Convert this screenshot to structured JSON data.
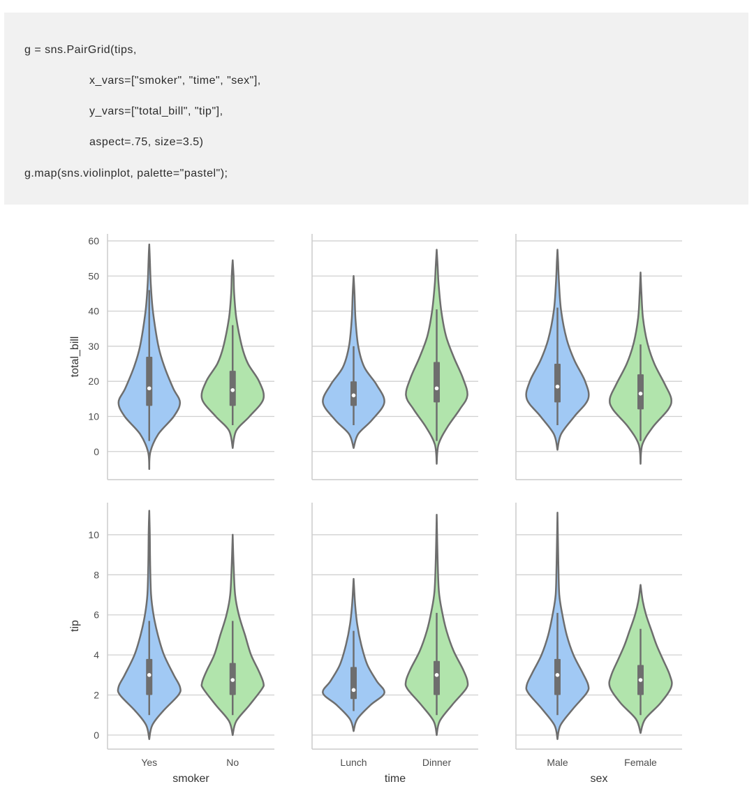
{
  "code": {
    "lines": [
      "g = sns.PairGrid(tips,",
      "x_vars=[\"smoker\", \"time\", \"sex\"],",
      "y_vars=[\"total_bill\", \"tip\"],",
      "aspect=.75, size=3.5)",
      "g.map(sns.violinplot, palette=\"pastel\");"
    ],
    "indent": [
      false,
      true,
      true,
      true,
      false
    ]
  },
  "colors": {
    "blue": "#a1c9f4",
    "green": "#b1e4ac",
    "outline": "#6e6e6e",
    "grid": "#d0d0d0",
    "spine": "#cccccc",
    "tick_text": "#4d4d4d"
  },
  "chart_data": {
    "type": "violin",
    "grid": true,
    "rows": [
      {
        "ylabel": "total_bill",
        "ylim": [
          -8,
          62
        ],
        "yticks": [
          "0",
          "10",
          "20",
          "30",
          "40",
          "50",
          "60"
        ],
        "ytick_values": [
          0,
          10,
          20,
          30,
          40,
          50,
          60
        ]
      },
      {
        "ylabel": "tip",
        "ylim": [
          -0.7,
          11.6
        ],
        "yticks": [
          "0",
          "2",
          "4",
          "6",
          "8",
          "10"
        ],
        "ytick_values": [
          0,
          2,
          4,
          6,
          8,
          10
        ]
      }
    ],
    "columns": [
      {
        "xlabel": "smoker",
        "categories": [
          "Yes",
          "No"
        ]
      },
      {
        "xlabel": "time",
        "categories": [
          "Lunch",
          "Dinner"
        ]
      },
      {
        "xlabel": "sex",
        "categories": [
          "Male",
          "Female"
        ]
      }
    ],
    "panels": [
      [
        [
          {
            "min": -5,
            "q1": 13,
            "median": 18,
            "q3": 27,
            "max": 59,
            "wlo": 3,
            "whi": 46,
            "bulge": 16,
            "prof": [
              [
                -5,
                0
              ],
              [
                0,
                0.04
              ],
              [
                5,
                0.3
              ],
              [
                10,
                0.8
              ],
              [
                14,
                1
              ],
              [
                18,
                0.78
              ],
              [
                24,
                0.5
              ],
              [
                30,
                0.3
              ],
              [
                40,
                0.12
              ],
              [
                48,
                0.05
              ],
              [
                55,
                0.02
              ],
              [
                59,
                0
              ]
            ]
          },
          {
            "min": 1,
            "q1": 13,
            "median": 17.5,
            "q3": 23,
            "max": 54.5,
            "wlo": 7.5,
            "whi": 36,
            "bulge": 16,
            "prof": [
              [
                1,
                0
              ],
              [
                6,
                0.12
              ],
              [
                10,
                0.55
              ],
              [
                15,
                1
              ],
              [
                20,
                0.86
              ],
              [
                25,
                0.5
              ],
              [
                30,
                0.3
              ],
              [
                38,
                0.12
              ],
              [
                45,
                0.05
              ],
              [
                50,
                0.03
              ],
              [
                54.5,
                0
              ]
            ]
          }
        ],
        [
          {
            "min": 1,
            "q1": 13,
            "median": 16,
            "q3": 20,
            "max": 50,
            "wlo": 7.5,
            "whi": 30,
            "bulge": 14,
            "prof": [
              [
                1,
                0
              ],
              [
                5,
                0.15
              ],
              [
                9,
                0.6
              ],
              [
                14,
                1
              ],
              [
                19,
                0.75
              ],
              [
                24,
                0.35
              ],
              [
                30,
                0.15
              ],
              [
                38,
                0.06
              ],
              [
                45,
                0.03
              ],
              [
                50,
                0
              ]
            ]
          },
          {
            "min": -3.5,
            "q1": 14,
            "median": 18,
            "q3": 25.5,
            "max": 57.5,
            "wlo": 3,
            "whi": 40.5,
            "bulge": 16,
            "prof": [
              [
                -3.5,
                0
              ],
              [
                2,
                0.06
              ],
              [
                7,
                0.35
              ],
              [
                12,
                0.75
              ],
              [
                16,
                1
              ],
              [
                21,
                0.85
              ],
              [
                27,
                0.55
              ],
              [
                33,
                0.3
              ],
              [
                40,
                0.15
              ],
              [
                48,
                0.06
              ],
              [
                53,
                0.03
              ],
              [
                57.5,
                0
              ]
            ]
          }
        ],
        [
          {
            "min": 0.5,
            "q1": 14,
            "median": 18.5,
            "q3": 25,
            "max": 57.5,
            "wlo": 7.5,
            "whi": 41,
            "bulge": 15.5,
            "prof": [
              [
                0.5,
                0
              ],
              [
                5,
                0.12
              ],
              [
                10,
                0.55
              ],
              [
                15,
                1
              ],
              [
                20,
                0.9
              ],
              [
                26,
                0.55
              ],
              [
                32,
                0.3
              ],
              [
                40,
                0.12
              ],
              [
                48,
                0.05
              ],
              [
                54,
                0.02
              ],
              [
                57.5,
                0
              ]
            ]
          },
          {
            "min": -3.5,
            "q1": 12,
            "median": 16.5,
            "q3": 22,
            "max": 51,
            "wlo": 3,
            "whi": 30.5,
            "bulge": 15,
            "prof": [
              [
                -3.5,
                0
              ],
              [
                2,
                0.06
              ],
              [
                7,
                0.4
              ],
              [
                12,
                0.9
              ],
              [
                15,
                1
              ],
              [
                19,
                0.8
              ],
              [
                25,
                0.45
              ],
              [
                31,
                0.22
              ],
              [
                38,
                0.08
              ],
              [
                45,
                0.03
              ],
              [
                51,
                0
              ]
            ]
          }
        ]
      ],
      [
        [
          {
            "min": -0.2,
            "q1": 2,
            "median": 3,
            "q3": 3.8,
            "max": 11.2,
            "wlo": 1,
            "whi": 5.7,
            "bulge": 2.3,
            "prof": [
              [
                -0.2,
                0
              ],
              [
                0.5,
                0.1
              ],
              [
                1.2,
                0.45
              ],
              [
                2,
                0.95
              ],
              [
                2.4,
                1
              ],
              [
                3,
                0.8
              ],
              [
                4,
                0.48
              ],
              [
                5,
                0.28
              ],
              [
                6,
                0.14
              ],
              [
                7,
                0.06
              ],
              [
                8.5,
                0.03
              ],
              [
                10,
                0.02
              ],
              [
                11.2,
                0
              ]
            ]
          },
          {
            "min": 0,
            "q1": 2,
            "median": 2.75,
            "q3": 3.6,
            "max": 10,
            "wlo": 1,
            "whi": 5.7,
            "bulge": 2.5,
            "prof": [
              [
                0,
                0
              ],
              [
                0.7,
                0.12
              ],
              [
                1.5,
                0.55
              ],
              [
                2.3,
                0.95
              ],
              [
                2.6,
                1
              ],
              [
                3.2,
                0.85
              ],
              [
                4,
                0.6
              ],
              [
                5,
                0.4
              ],
              [
                6,
                0.2
              ],
              [
                7,
                0.08
              ],
              [
                8.5,
                0.03
              ],
              [
                10,
                0
              ]
            ]
          }
        ],
        [
          {
            "min": 0.2,
            "q1": 1.8,
            "median": 2.25,
            "q3": 3.4,
            "max": 7.8,
            "wlo": 1.2,
            "whi": 5.2,
            "bulge": 2.1,
            "prof": [
              [
                0.2,
                0
              ],
              [
                0.8,
                0.12
              ],
              [
                1.5,
                0.55
              ],
              [
                2.1,
                1
              ],
              [
                2.7,
                0.75
              ],
              [
                3.5,
                0.45
              ],
              [
                4.5,
                0.25
              ],
              [
                5.5,
                0.12
              ],
              [
                6.5,
                0.05
              ],
              [
                7.8,
                0
              ]
            ]
          },
          {
            "min": 0,
            "q1": 2,
            "median": 3,
            "q3": 3.7,
            "max": 11,
            "wlo": 1,
            "whi": 6.1,
            "bulge": 2.3,
            "prof": [
              [
                0,
                0
              ],
              [
                0.7,
                0.1
              ],
              [
                1.5,
                0.5
              ],
              [
                2.3,
                0.95
              ],
              [
                2.7,
                1
              ],
              [
                3.3,
                0.85
              ],
              [
                4.2,
                0.55
              ],
              [
                5.2,
                0.32
              ],
              [
                6.2,
                0.17
              ],
              [
                7.2,
                0.07
              ],
              [
                8.8,
                0.03
              ],
              [
                11,
                0
              ]
            ]
          }
        ],
        [
          {
            "min": -0.2,
            "q1": 2,
            "median": 3,
            "q3": 3.8,
            "max": 11.1,
            "wlo": 1,
            "whi": 6.1,
            "bulge": 2.3,
            "prof": [
              [
                -0.2,
                0
              ],
              [
                0.5,
                0.1
              ],
              [
                1.3,
                0.5
              ],
              [
                2.1,
                0.95
              ],
              [
                2.5,
                1
              ],
              [
                3.1,
                0.82
              ],
              [
                4,
                0.52
              ],
              [
                5,
                0.3
              ],
              [
                6,
                0.16
              ],
              [
                7,
                0.06
              ],
              [
                8.5,
                0.03
              ],
              [
                11.1,
                0
              ]
            ]
          },
          {
            "min": 0.1,
            "q1": 2,
            "median": 2.75,
            "q3": 3.5,
            "max": 7.5,
            "wlo": 1,
            "whi": 5.3,
            "bulge": 2.6,
            "prof": [
              [
                0.1,
                0
              ],
              [
                0.8,
                0.15
              ],
              [
                1.6,
                0.65
              ],
              [
                2.4,
                1
              ],
              [
                3,
                0.95
              ],
              [
                3.8,
                0.72
              ],
              [
                4.5,
                0.52
              ],
              [
                5.2,
                0.36
              ],
              [
                6,
                0.18
              ],
              [
                6.7,
                0.07
              ],
              [
                7.5,
                0
              ]
            ]
          }
        ]
      ]
    ]
  }
}
